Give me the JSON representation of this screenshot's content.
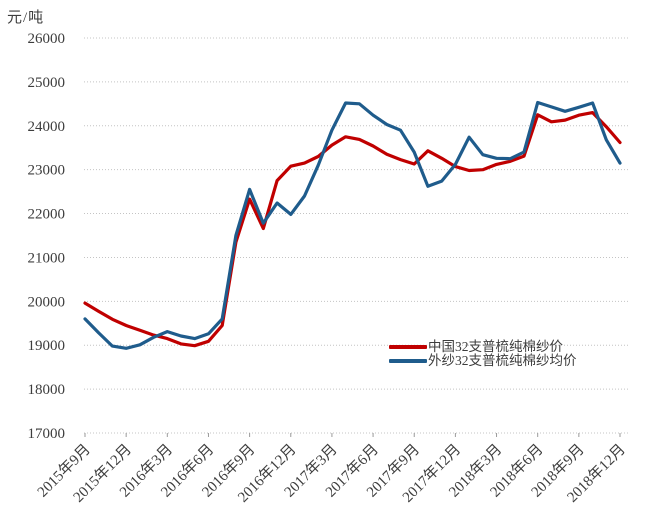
{
  "chart": {
    "unit_label": "元/吨"
  },
  "chart_data": {
    "type": "line",
    "title": "",
    "ylabel": "元/吨",
    "xlabel": "",
    "ylim": [
      17000,
      26000
    ],
    "yticks": [
      26000,
      25000,
      24000,
      23000,
      22000,
      21000,
      20000,
      19000,
      18000,
      17000
    ],
    "grid": "horizontal-dotted",
    "legend_position": "inside-right-bottom",
    "x": [
      "2015-09",
      "2015-10",
      "2015-11",
      "2015-12",
      "2016-01",
      "2016-02",
      "2016-03",
      "2016-04",
      "2016-05",
      "2016-06",
      "2016-07",
      "2016-08",
      "2016-09",
      "2016-10",
      "2016-11",
      "2016-12",
      "2017-01",
      "2017-02",
      "2017-03",
      "2017-04",
      "2017-05",
      "2017-06",
      "2017-07",
      "2017-08",
      "2017-09",
      "2017-10",
      "2017-11",
      "2017-12",
      "2018-01",
      "2018-02",
      "2018-03",
      "2018-04",
      "2018-05",
      "2018-06",
      "2018-07",
      "2018-08",
      "2018-09",
      "2018-10",
      "2018-11",
      "2018-12"
    ],
    "xtick_labels": [
      "2015年9月",
      "2015年12月",
      "2016年3月",
      "2016年6月",
      "2016年9月",
      "2016年12月",
      "2017年3月",
      "2017年6月",
      "2017年9月",
      "2017年12月",
      "2018年3月",
      "2018年6月",
      "2018年9月",
      "2018年12月"
    ],
    "xtick_every": 3,
    "series": [
      {
        "name": "中国32支普梳纯棉纱价",
        "color": "#c00000",
        "values": [
          19960,
          19770,
          19590,
          19450,
          19340,
          19230,
          19150,
          19030,
          18990,
          19090,
          19450,
          21350,
          22330,
          21660,
          22750,
          23080,
          23150,
          23300,
          23560,
          23750,
          23690,
          23540,
          23350,
          23230,
          23130,
          23430,
          23260,
          23070,
          22980,
          23000,
          23120,
          23190,
          23310,
          24250,
          24090,
          24130,
          24240,
          24300,
          23980,
          23620
        ]
      },
      {
        "name": "外纱32支普梳纯棉纱均价",
        "color": "#1f5c8c",
        "values": [
          19600,
          19280,
          18980,
          18930,
          19010,
          19180,
          19310,
          19210,
          19150,
          19260,
          19600,
          21500,
          22550,
          21780,
          22240,
          21980,
          22400,
          23100,
          23900,
          24520,
          24500,
          24240,
          24030,
          23900,
          23400,
          22620,
          22740,
          23120,
          23740,
          23340,
          23260,
          23250,
          23400,
          24530,
          24430,
          24330,
          24420,
          24520,
          23680,
          23150
        ]
      }
    ],
    "style": {
      "grid_color": "#c4c4c4",
      "text_color": "#3d3d3d",
      "line_width": 3.2
    }
  }
}
